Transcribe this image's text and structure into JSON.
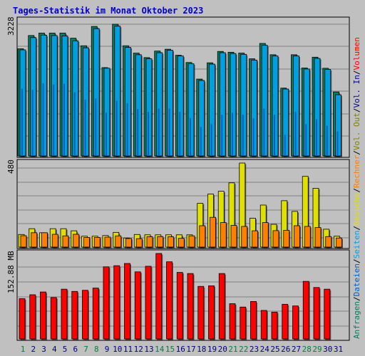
{
  "title": "Tages-Statistik im Monat Oktober 2023",
  "days": [
    "1",
    "2",
    "3",
    "4",
    "5",
    "6",
    "7",
    "8",
    "9",
    "10",
    "11",
    "12",
    "13",
    "14",
    "15",
    "16",
    "17",
    "18",
    "19",
    "20",
    "21",
    "22",
    "23",
    "24",
    "25",
    "26",
    "27",
    "28",
    "29",
    "30",
    "31"
  ],
  "weekend_days": [
    "1",
    "7",
    "8",
    "14",
    "15",
    "21",
    "22",
    "28",
    "29"
  ],
  "axis_labels": {
    "top_max": "3228",
    "middle_max": "480",
    "bottom_max": "152.88 MB"
  },
  "legend": {
    "right": [
      {
        "text": "Anfragen",
        "color": "#008060"
      },
      {
        "text": "/",
        "color": "#000000"
      },
      {
        "text": "Dateien",
        "color": "#0060c0"
      },
      {
        "text": "/",
        "color": "#000000"
      },
      {
        "text": "Seiten",
        "color": "#00a0e0"
      },
      {
        "text": "/",
        "color": "#000000"
      },
      {
        "text": "Besuche",
        "color": "#e0e000"
      },
      {
        "text": "/",
        "color": "#000000"
      },
      {
        "text": "Rechner",
        "color": "#ff8000"
      },
      {
        "text": "/",
        "color": "#000000"
      },
      {
        "text": "Vol. Out",
        "color": "#808000"
      },
      {
        "text": "/",
        "color": "#000000"
      },
      {
        "text": "Vol. In",
        "color": "#0000a0"
      },
      {
        "text": "/",
        "color": "#000000"
      },
      {
        "text": "Volumen",
        "color": "#ff0000"
      }
    ]
  },
  "colors": {
    "background": "#c0c0c0",
    "title": "#0000cc",
    "weekday_label": "#000080",
    "weekend_label": "#008040"
  },
  "chart_data": [
    {
      "type": "bar",
      "panel": "top",
      "categories": [
        "1",
        "2",
        "3",
        "4",
        "5",
        "6",
        "7",
        "8",
        "9",
        "10",
        "11",
        "12",
        "13",
        "14",
        "15",
        "16",
        "17",
        "18",
        "19",
        "20",
        "21",
        "22",
        "23",
        "24",
        "25",
        "26",
        "27",
        "28",
        "29",
        "30",
        "31"
      ],
      "ylim": [
        0,
        3228
      ],
      "series": [
        {
          "name": "Anfragen",
          "color": "#008060",
          "values": [
            2625,
            2951,
            3010,
            3010,
            3010,
            2885,
            2700,
            3173,
            2164,
            3228,
            2700,
            2520,
            2410,
            2570,
            2615,
            2467,
            2290,
            1883,
            2282,
            2561,
            2541,
            2520,
            2380,
            2757,
            2480,
            1662,
            2480,
            2155,
            2420,
            2148,
            1568
          ]
        },
        {
          "name": "Dateien",
          "color": "#0060c0",
          "values": [
            1650,
            1620,
            1780,
            1750,
            1770,
            1560,
            1380,
            1410,
            1060,
            1350,
            1290,
            1150,
            1080,
            1160,
            1160,
            1080,
            930,
            710,
            790,
            1010,
            1060,
            1010,
            920,
            1160,
            1010,
            520,
            1080,
            780,
            900,
            740,
            600
          ]
        },
        {
          "name": "Seiten",
          "color": "#00a0e0",
          "values": [
            2600,
            2900,
            2960,
            2950,
            2940,
            2820,
            2650,
            3120,
            2150,
            3180,
            2660,
            2480,
            2380,
            2530,
            2590,
            2450,
            2260,
            1850,
            2250,
            2530,
            2510,
            2490,
            2350,
            2710,
            2450,
            1640,
            2450,
            2130,
            2390,
            2120,
            1500
          ]
        }
      ]
    },
    {
      "type": "bar",
      "panel": "middle",
      "categories": [
        "1",
        "2",
        "3",
        "4",
        "5",
        "6",
        "7",
        "8",
        "9",
        "10",
        "11",
        "12",
        "13",
        "14",
        "15",
        "16",
        "17",
        "18",
        "19",
        "20",
        "21",
        "22",
        "23",
        "24",
        "25",
        "26",
        "27",
        "28",
        "29",
        "30",
        "31"
      ],
      "ylim": [
        0,
        480
      ],
      "series": [
        {
          "name": "Besuche",
          "color": "#e0e000",
          "values": [
            72,
            105,
            82,
            105,
            105,
            93,
            62,
            62,
            66,
            84,
            52,
            72,
            70,
            70,
            70,
            70,
            70,
            250,
            303,
            319,
            367,
            480,
            165,
            240,
            130,
            265,
            204,
            404,
            336,
            102,
            62
          ]
        },
        {
          "name": "Rechner",
          "color": "#ff8000",
          "values": [
            65,
            82,
            82,
            73,
            64,
            73,
            55,
            55,
            57,
            64,
            49,
            48,
            59,
            60,
            59,
            50,
            64,
            122,
            170,
            140,
            124,
            118,
            93,
            140,
            94,
            96,
            122,
            118,
            112,
            60,
            52
          ]
        }
      ]
    },
    {
      "type": "bar",
      "panel": "bottom",
      "categories": [
        "1",
        "2",
        "3",
        "4",
        "5",
        "6",
        "7",
        "8",
        "9",
        "10",
        "11",
        "12",
        "13",
        "14",
        "15",
        "16",
        "17",
        "18",
        "19",
        "20",
        "21",
        "22",
        "23",
        "24",
        "25",
        "26",
        "27",
        "28",
        "29",
        "30",
        "31"
      ],
      "ylim": [
        0,
        152.88
      ],
      "series": [
        {
          "name": "Volumen",
          "color": "#ff0000",
          "values": [
            72,
            79,
            84,
            74,
            89,
            85,
            87,
            91,
            129,
            131,
            135,
            120,
            130,
            152.88,
            138,
            119,
            117,
            94,
            95,
            117,
            63,
            57,
            67,
            51,
            48,
            62,
            59,
            103,
            92,
            89,
            null
          ]
        }
      ]
    }
  ]
}
